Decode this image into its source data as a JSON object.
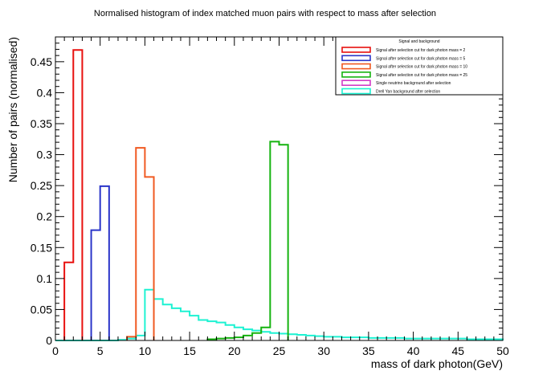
{
  "chart_data": {
    "type": "histogram",
    "title": "Normalised histogram of index matched muon pairs with respect to mass after selection",
    "xlabel": "mass of dark photon(GeV)",
    "ylabel": "Number of pairs (normalised)",
    "xlim": [
      0,
      50
    ],
    "ylim": [
      0,
      0.49
    ],
    "xticks": [
      0,
      5,
      10,
      15,
      20,
      25,
      30,
      35,
      40,
      45,
      50
    ],
    "yticks": [
      0,
      0.05,
      0.1,
      0.15,
      0.2,
      0.25,
      0.3,
      0.35,
      0.4,
      0.45
    ],
    "grid": false,
    "bin_width": 1,
    "legend": {
      "title": "Signal and background",
      "position": "top-right"
    },
    "series": [
      {
        "name": "Signal after selection cut for dark photon mass = 2",
        "color": "#e8100e",
        "bin_edges": [
          1,
          2,
          3
        ],
        "values": [
          0.126,
          0.469
        ]
      },
      {
        "name": "Signal after selection cut for dark photon mass = 5",
        "color": "#2a35c9",
        "bin_edges": [
          4,
          5,
          6
        ],
        "values": [
          0.178,
          0.249
        ]
      },
      {
        "name": "Signal after selection cut for dark photon mass = 10",
        "color": "#f05a22",
        "bin_edges": [
          8,
          9,
          10,
          11
        ],
        "values": [
          0.006,
          0.311,
          0.264
        ]
      },
      {
        "name": "Signal after selection cut for dark photon mass = 25",
        "color": "#15b30f",
        "bin_edges": [
          17,
          18,
          19,
          20,
          21,
          22,
          23,
          24,
          25,
          26
        ],
        "values": [
          0.002,
          0.003,
          0.004,
          0.005,
          0.008,
          0.012,
          0.021,
          0.321,
          0.316
        ]
      },
      {
        "name": "Single neutrino background after selection",
        "color": "#d23cc6",
        "bin_edges": [],
        "values": []
      },
      {
        "name": "Drell Yan background after selection",
        "color": "#1df2d2",
        "bin_edges": [
          0,
          1,
          2,
          3,
          4,
          5,
          6,
          7,
          8,
          9,
          10,
          11,
          12,
          13,
          14,
          15,
          16,
          17,
          18,
          19,
          20,
          21,
          22,
          23,
          24,
          25,
          26,
          27,
          28,
          29,
          30,
          31,
          32,
          33,
          34,
          35,
          36,
          37,
          38,
          39,
          40,
          41,
          42,
          43,
          44,
          45,
          46,
          47,
          48,
          49,
          50
        ],
        "values": [
          0.0,
          0.0,
          0.0,
          0.0,
          0.0,
          0.0,
          0.0,
          0.001,
          0.003,
          0.008,
          0.082,
          0.067,
          0.058,
          0.052,
          0.047,
          0.04,
          0.033,
          0.031,
          0.029,
          0.025,
          0.021,
          0.018,
          0.016,
          0.014,
          0.012,
          0.011,
          0.01,
          0.009,
          0.008,
          0.007,
          0.006,
          0.006,
          0.005,
          0.005,
          0.005,
          0.004,
          0.004,
          0.004,
          0.004,
          0.003,
          0.003,
          0.003,
          0.003,
          0.003,
          0.003,
          0.003,
          0.002,
          0.002,
          0.002,
          0.002
        ]
      }
    ]
  }
}
